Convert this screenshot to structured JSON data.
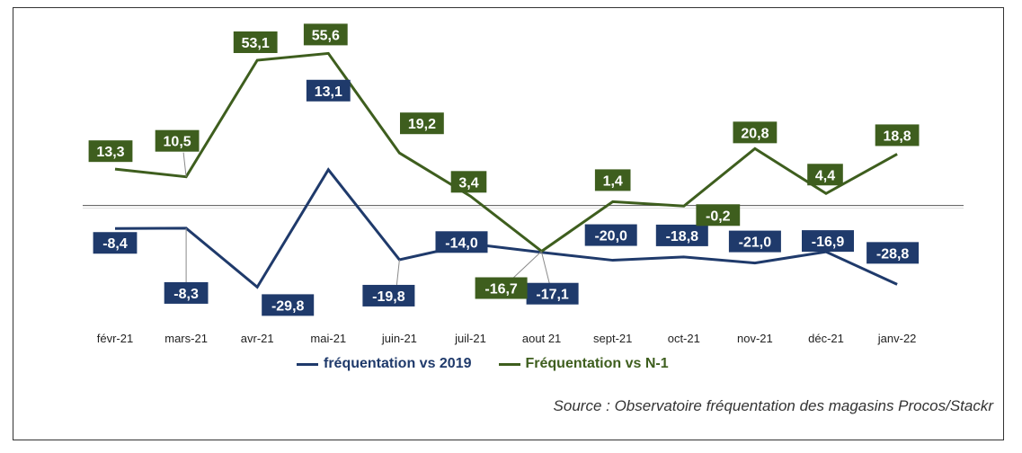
{
  "chart_data": {
    "type": "line",
    "categories": [
      "févr-21",
      "mars-21",
      "avr-21",
      "mai-21",
      "juin-21",
      "juil-21",
      "aout 21",
      "sept-21",
      "oct-21",
      "nov-21",
      "déc-21",
      "janv-22"
    ],
    "series": [
      {
        "name": "fréquentation vs 2019",
        "color": "#1f3a6b",
        "values": [
          -8.4,
          -8.3,
          -29.8,
          13.1,
          -19.8,
          -14.0,
          -17.1,
          -20.0,
          -18.8,
          -21.0,
          -16.9,
          -28.8
        ],
        "labels": [
          "-8,4",
          "-8,3",
          "-29,8",
          "13,1",
          "-19,8",
          "-14,0",
          "-17,1",
          "-20,0",
          "-18,8",
          "-21,0",
          "-16,9",
          "-28,8"
        ]
      },
      {
        "name": "Fréquentation vs N-1",
        "color": "#3e5e1e",
        "values": [
          13.3,
          10.5,
          53.1,
          55.6,
          19.2,
          3.4,
          -16.7,
          1.4,
          -0.2,
          20.8,
          4.4,
          18.8
        ],
        "labels": [
          "13,3",
          "10,5",
          "53,1",
          "55,6",
          "19,2",
          "3,4",
          "-16,7",
          "1,4",
          "-0,2",
          "20,8",
          "4,4",
          "18,8"
        ]
      }
    ],
    "ylim": [
      -30,
      60
    ],
    "grid": false,
    "legend_position": "bottom"
  },
  "source": "Source : Observatoire fréquentation des magasins Procos/Stackr"
}
